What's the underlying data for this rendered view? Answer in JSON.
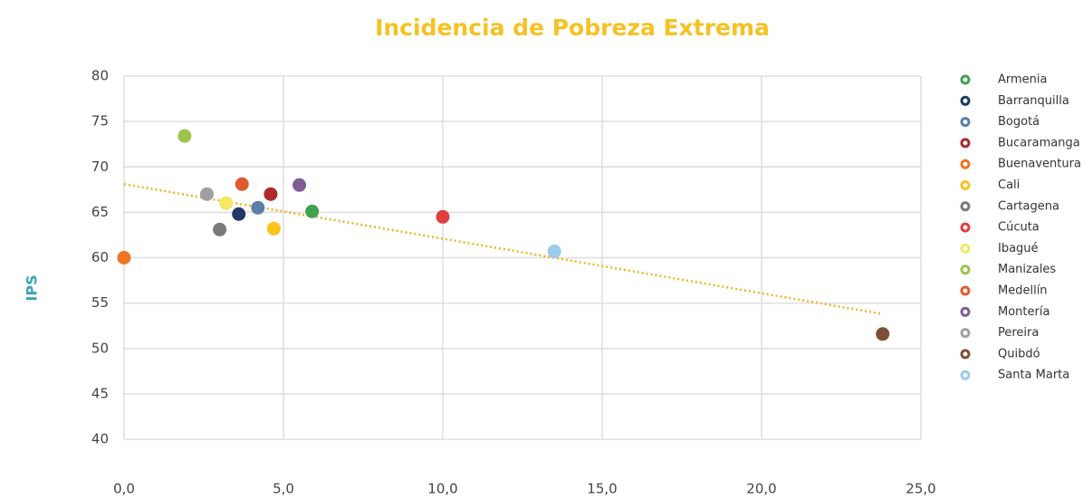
{
  "chart_data": {
    "type": "scatter",
    "title": "Incidencia de Pobreza Extrema",
    "y_label": "IPS",
    "xlim": [
      0,
      25
    ],
    "ylim": [
      40,
      80
    ],
    "xticks": [
      {
        "value": 0,
        "label": "0,0"
      },
      {
        "value": 5,
        "label": "5,0"
      },
      {
        "value": 10,
        "label": "10,0"
      },
      {
        "value": 15,
        "label": "15,0"
      },
      {
        "value": 20,
        "label": "20,0"
      },
      {
        "value": 25,
        "label": "25,0"
      }
    ],
    "yticks": [
      40,
      45,
      50,
      55,
      60,
      65,
      70,
      75,
      80
    ],
    "grid": true,
    "legend": "right",
    "series": [
      {
        "name": "Armenia",
        "color": "#3fa34d",
        "x": [
          5.9
        ],
        "values": [
          65.1
        ]
      },
      {
        "name": "Barranquilla",
        "color": "#1f3864",
        "x": [
          3.6
        ],
        "values": [
          64.8
        ]
      },
      {
        "name": "Bogotá",
        "color": "#5b7fa6",
        "x": [
          4.2
        ],
        "values": [
          65.5
        ]
      },
      {
        "name": "Bucaramanga",
        "color": "#b0282a",
        "x": [
          4.6
        ],
        "values": [
          67.0
        ]
      },
      {
        "name": "Buenaventura",
        "color": "#ee7623",
        "x": [
          0.0
        ],
        "values": [
          60.0
        ]
      },
      {
        "name": "Cali",
        "color": "#f9c31a",
        "x": [
          4.7
        ],
        "values": [
          63.2
        ]
      },
      {
        "name": "Cartagena",
        "color": "#7a7a7a",
        "x": [
          3.0
        ],
        "values": [
          63.1
        ]
      },
      {
        "name": "Cúcuta",
        "color": "#e04040",
        "x": [
          10.0
        ],
        "values": [
          64.5
        ]
      },
      {
        "name": "Ibagué",
        "color": "#f5e663",
        "x": [
          3.2
        ],
        "values": [
          66.0
        ]
      },
      {
        "name": "Manizales",
        "color": "#9dc34a",
        "x": [
          1.9
        ],
        "values": [
          73.4
        ]
      },
      {
        "name": "Medellín",
        "color": "#e05a2e",
        "x": [
          3.7
        ],
        "values": [
          68.1
        ]
      },
      {
        "name": "Montería",
        "color": "#805d94",
        "x": [
          5.5
        ],
        "values": [
          68.0
        ]
      },
      {
        "name": "Pereira",
        "color": "#a0a0a0",
        "x": [
          2.6
        ],
        "values": [
          67.0
        ]
      },
      {
        "name": "Quibdó",
        "color": "#7b4f3a",
        "x": [
          23.8
        ],
        "values": [
          51.6
        ]
      },
      {
        "name": "Santa Marta",
        "color": "#9ccbec",
        "x": [
          13.5
        ],
        "values": [
          60.7
        ]
      }
    ],
    "trendline": {
      "color": "#f0b323",
      "x": [
        0,
        23.8
      ],
      "values": [
        68.1,
        53.8
      ]
    }
  }
}
